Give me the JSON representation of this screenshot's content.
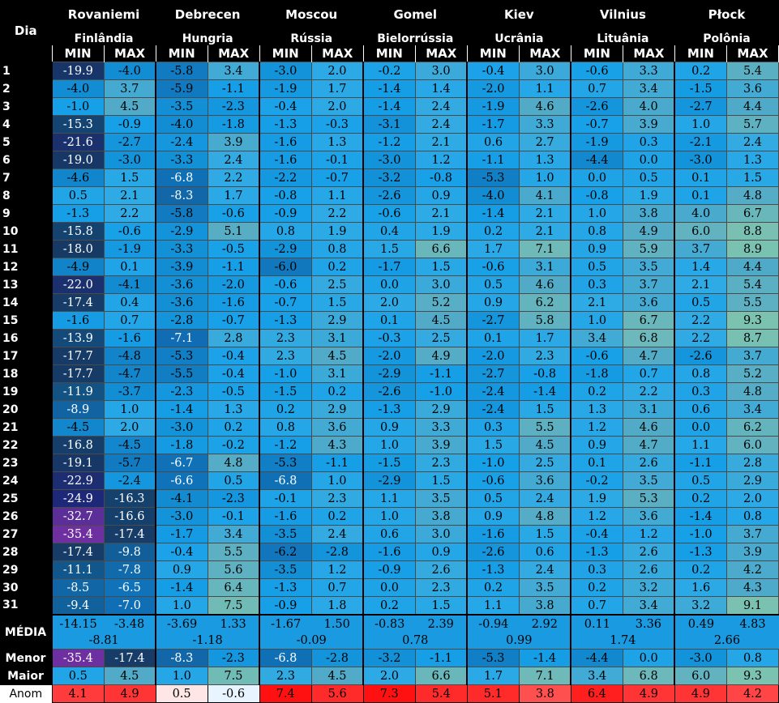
{
  "header": {
    "dia_label": "Dia",
    "min_label": "MIN",
    "max_label": "MAX"
  },
  "cities": [
    {
      "city": "Rovaniemi",
      "country": "Finlândia"
    },
    {
      "city": "Debrecen",
      "country": "Hungria"
    },
    {
      "city": "Moscou",
      "country": "Rússia"
    },
    {
      "city": "Gomel",
      "country": "Bielorrússia"
    },
    {
      "city": "Kiev",
      "country": "Ucrânia"
    },
    {
      "city": "Vilnius",
      "country": "Lituânia"
    },
    {
      "city": "Płock",
      "country": "Polônia"
    }
  ],
  "days": [
    "1",
    "2",
    "3",
    "4",
    "5",
    "6",
    "7",
    "8",
    "9",
    "10",
    "11",
    "12",
    "13",
    "14",
    "15",
    "16",
    "17",
    "18",
    "19",
    "20",
    "21",
    "22",
    "23",
    "24",
    "25",
    "26",
    "27",
    "28",
    "29",
    "30",
    "31"
  ],
  "values": [
    [
      [
        "-19.9",
        "-4.0"
      ],
      [
        "-5.8",
        "3.4"
      ],
      [
        "-3.0",
        "2.0"
      ],
      [
        "-0.2",
        "3.0"
      ],
      [
        "-0.4",
        "3.0"
      ],
      [
        "-0.6",
        "3.3"
      ],
      [
        "0.2",
        "5.4"
      ]
    ],
    [
      [
        "-4.0",
        "3.7"
      ],
      [
        "-5.9",
        "-1.1"
      ],
      [
        "-1.9",
        "1.7"
      ],
      [
        "-1.4",
        "1.4"
      ],
      [
        "-2.0",
        "1.1"
      ],
      [
        "0.7",
        "3.4"
      ],
      [
        "-1.5",
        "3.6"
      ]
    ],
    [
      [
        "-1.0",
        "4.5"
      ],
      [
        "-3.5",
        "-2.3"
      ],
      [
        "-0.4",
        "2.0"
      ],
      [
        "-1.4",
        "2.4"
      ],
      [
        "-1.9",
        "4.6"
      ],
      [
        "-2.6",
        "4.0"
      ],
      [
        "-2.7",
        "4.4"
      ]
    ],
    [
      [
        "-15.3",
        "-0.9"
      ],
      [
        "-4.0",
        "-1.8"
      ],
      [
        "-1.3",
        "-0.3"
      ],
      [
        "-3.1",
        "2.4"
      ],
      [
        "-1.7",
        "3.3"
      ],
      [
        "-0.7",
        "3.9"
      ],
      [
        "1.0",
        "5.7"
      ]
    ],
    [
      [
        "-21.6",
        "-2.7"
      ],
      [
        "-2.4",
        "3.9"
      ],
      [
        "-1.6",
        "1.3"
      ],
      [
        "-1.2",
        "2.1"
      ],
      [
        "0.6",
        "2.7"
      ],
      [
        "-1.9",
        "0.3"
      ],
      [
        "-2.1",
        "2.4"
      ]
    ],
    [
      [
        "-19.0",
        "-3.0"
      ],
      [
        "-3.3",
        "2.4"
      ],
      [
        "-1.6",
        "-0.1"
      ],
      [
        "-3.0",
        "1.2"
      ],
      [
        "-1.1",
        "1.3"
      ],
      [
        "-4.4",
        "0.0"
      ],
      [
        "-3.0",
        "1.3"
      ]
    ],
    [
      [
        "-4.6",
        "1.5"
      ],
      [
        "-6.8",
        "2.2"
      ],
      [
        "-2.2",
        "-0.7"
      ],
      [
        "-3.2",
        "-0.8"
      ],
      [
        "-5.3",
        "1.0"
      ],
      [
        "0.0",
        "0.5"
      ],
      [
        "0.1",
        "1.5"
      ]
    ],
    [
      [
        "0.5",
        "2.1"
      ],
      [
        "-8.3",
        "1.7"
      ],
      [
        "-0.8",
        "1.1"
      ],
      [
        "-2.6",
        "0.9"
      ],
      [
        "-4.0",
        "4.1"
      ],
      [
        "-0.8",
        "1.9"
      ],
      [
        "0.1",
        "4.8"
      ]
    ],
    [
      [
        "-1.3",
        "2.2"
      ],
      [
        "-5.8",
        "-0.6"
      ],
      [
        "-0.9",
        "2.2"
      ],
      [
        "-0.6",
        "2.1"
      ],
      [
        "-1.4",
        "2.1"
      ],
      [
        "1.0",
        "3.8"
      ],
      [
        "4.0",
        "6.7"
      ]
    ],
    [
      [
        "-15.8",
        "-0.6"
      ],
      [
        "-2.9",
        "5.1"
      ],
      [
        "0.8",
        "1.9"
      ],
      [
        "0.4",
        "1.9"
      ],
      [
        "0.2",
        "2.1"
      ],
      [
        "0.8",
        "4.9"
      ],
      [
        "6.0",
        "8.8"
      ]
    ],
    [
      [
        "-18.0",
        "-1.9"
      ],
      [
        "-3.3",
        "-0.5"
      ],
      [
        "-2.9",
        "0.8"
      ],
      [
        "1.5",
        "6.6"
      ],
      [
        "1.7",
        "7.1"
      ],
      [
        "0.9",
        "5.9"
      ],
      [
        "3.7",
        "8.9"
      ]
    ],
    [
      [
        "-4.9",
        "0.1"
      ],
      [
        "-3.9",
        "-1.1"
      ],
      [
        "-6.0",
        "0.2"
      ],
      [
        "-1.7",
        "1.5"
      ],
      [
        "-0.6",
        "3.1"
      ],
      [
        "0.5",
        "3.5"
      ],
      [
        "1.4",
        "4.4"
      ]
    ],
    [
      [
        "-22.0",
        "-4.1"
      ],
      [
        "-3.6",
        "-2.0"
      ],
      [
        "-0.6",
        "2.5"
      ],
      [
        "0.0",
        "3.0"
      ],
      [
        "0.5",
        "4.6"
      ],
      [
        "0.3",
        "3.7"
      ],
      [
        "2.1",
        "5.4"
      ]
    ],
    [
      [
        "-17.4",
        "0.4"
      ],
      [
        "-3.6",
        "-1.6"
      ],
      [
        "-0.7",
        "1.5"
      ],
      [
        "2.0",
        "5.2"
      ],
      [
        "0.9",
        "6.2"
      ],
      [
        "2.1",
        "3.6"
      ],
      [
        "0.5",
        "5.5"
      ]
    ],
    [
      [
        "-1.6",
        "0.7"
      ],
      [
        "-2.8",
        "-0.7"
      ],
      [
        "-1.3",
        "2.9"
      ],
      [
        "0.1",
        "4.5"
      ],
      [
        "-2.7",
        "5.8"
      ],
      [
        "1.0",
        "6.7"
      ],
      [
        "2.2",
        "9.3"
      ]
    ],
    [
      [
        "-13.9",
        "-1.6"
      ],
      [
        "-7.1",
        "2.8"
      ],
      [
        "2.3",
        "3.1"
      ],
      [
        "-0.3",
        "2.5"
      ],
      [
        "0.1",
        "1.7"
      ],
      [
        "3.4",
        "6.8"
      ],
      [
        "2.2",
        "8.7"
      ]
    ],
    [
      [
        "-17.7",
        "-4.8"
      ],
      [
        "-5.3",
        "-0.4"
      ],
      [
        "2.3",
        "4.5"
      ],
      [
        "-2.0",
        "4.9"
      ],
      [
        "-2.0",
        "2.3"
      ],
      [
        "-0.6",
        "4.7"
      ],
      [
        "-2.6",
        "3.7"
      ]
    ],
    [
      [
        "-17.7",
        "-4.7"
      ],
      [
        "-5.5",
        "-0.4"
      ],
      [
        "-1.0",
        "3.1"
      ],
      [
        "-2.9",
        "-1.1"
      ],
      [
        "-2.7",
        "-0.8"
      ],
      [
        "-1.8",
        "0.7"
      ],
      [
        "0.8",
        "5.2"
      ]
    ],
    [
      [
        "-11.9",
        "-3.7"
      ],
      [
        "-2.3",
        "-0.5"
      ],
      [
        "-1.5",
        "0.2"
      ],
      [
        "-2.6",
        "-1.0"
      ],
      [
        "-2.4",
        "-1.4"
      ],
      [
        "0.2",
        "2.2"
      ],
      [
        "0.3",
        "4.8"
      ]
    ],
    [
      [
        "-8.9",
        "1.0"
      ],
      [
        "-1.4",
        "1.3"
      ],
      [
        "0.2",
        "2.9"
      ],
      [
        "-1.3",
        "2.9"
      ],
      [
        "-2.4",
        "1.5"
      ],
      [
        "1.3",
        "3.1"
      ],
      [
        "0.6",
        "3.4"
      ]
    ],
    [
      [
        "-4.5",
        "2.0"
      ],
      [
        "-3.0",
        "0.2"
      ],
      [
        "0.8",
        "3.6"
      ],
      [
        "0.9",
        "3.3"
      ],
      [
        "0.3",
        "5.5"
      ],
      [
        "1.2",
        "4.6"
      ],
      [
        "0.0",
        "6.2"
      ]
    ],
    [
      [
        "-16.8",
        "-4.5"
      ],
      [
        "-1.8",
        "-0.2"
      ],
      [
        "-1.2",
        "4.3"
      ],
      [
        "1.0",
        "3.9"
      ],
      [
        "1.5",
        "4.5"
      ],
      [
        "0.9",
        "4.7"
      ],
      [
        "1.1",
        "6.0"
      ]
    ],
    [
      [
        "-19.1",
        "-5.7"
      ],
      [
        "-6.7",
        "4.8"
      ],
      [
        "-5.3",
        "-1.1"
      ],
      [
        "-1.5",
        "2.3"
      ],
      [
        "-1.0",
        "2.5"
      ],
      [
        "0.1",
        "2.6"
      ],
      [
        "-1.1",
        "2.8"
      ]
    ],
    [
      [
        "-22.9",
        "-2.4"
      ],
      [
        "-6.6",
        "0.5"
      ],
      [
        "-6.8",
        "1.0"
      ],
      [
        "-2.9",
        "1.5"
      ],
      [
        "-0.6",
        "3.6"
      ],
      [
        "-0.2",
        "3.5"
      ],
      [
        "0.5",
        "2.9"
      ]
    ],
    [
      [
        "-24.9",
        "-16.3"
      ],
      [
        "-4.1",
        "-2.3"
      ],
      [
        "-0.1",
        "2.3"
      ],
      [
        "1.1",
        "3.5"
      ],
      [
        "0.5",
        "2.4"
      ],
      [
        "1.9",
        "5.3"
      ],
      [
        "0.2",
        "2.0"
      ]
    ],
    [
      [
        "-32.7",
        "-16.6"
      ],
      [
        "-3.0",
        "-0.1"
      ],
      [
        "-1.6",
        "0.2"
      ],
      [
        "1.0",
        "3.8"
      ],
      [
        "0.9",
        "4.8"
      ],
      [
        "1.2",
        "3.6"
      ],
      [
        "-1.4",
        "0.8"
      ]
    ],
    [
      [
        "-35.4",
        "-17.4"
      ],
      [
        "-1.7",
        "3.4"
      ],
      [
        "-3.5",
        "2.4"
      ],
      [
        "0.6",
        "3.0"
      ],
      [
        "-1.6",
        "1.5"
      ],
      [
        "-0.4",
        "1.2"
      ],
      [
        "-1.0",
        "3.7"
      ]
    ],
    [
      [
        "-17.4",
        "-9.8"
      ],
      [
        "-0.4",
        "5.5"
      ],
      [
        "-6.2",
        "-2.8"
      ],
      [
        "-1.6",
        "0.9"
      ],
      [
        "-2.6",
        "0.6"
      ],
      [
        "-1.3",
        "2.6"
      ],
      [
        "-1.3",
        "3.9"
      ]
    ],
    [
      [
        "-11.1",
        "-7.8"
      ],
      [
        "0.9",
        "5.6"
      ],
      [
        "-3.5",
        "1.2"
      ],
      [
        "-0.9",
        "2.6"
      ],
      [
        "-1.3",
        "2.4"
      ],
      [
        "0.3",
        "2.6"
      ],
      [
        "0.2",
        "4.2"
      ]
    ],
    [
      [
        "-8.5",
        "-6.5"
      ],
      [
        "-1.4",
        "6.4"
      ],
      [
        "-1.3",
        "0.7"
      ],
      [
        "0.0",
        "2.3"
      ],
      [
        "0.2",
        "3.5"
      ],
      [
        "0.2",
        "3.2"
      ],
      [
        "1.6",
        "4.3"
      ]
    ],
    [
      [
        "-9.4",
        "-7.0"
      ],
      [
        "1.0",
        "7.5"
      ],
      [
        "-0.9",
        "1.8"
      ],
      [
        "0.2",
        "1.5"
      ],
      [
        "1.1",
        "3.8"
      ],
      [
        "0.7",
        "3.4"
      ],
      [
        "3.2",
        "9.1"
      ]
    ]
  ],
  "media": {
    "label": "MÉDIA",
    "minmax": [
      [
        "-14.15",
        "-3.48"
      ],
      [
        "-3.69",
        "1.33"
      ],
      [
        "-1.67",
        "1.50"
      ],
      [
        "-0.83",
        "2.39"
      ],
      [
        "-0.94",
        "2.92"
      ],
      [
        "0.11",
        "3.36"
      ],
      [
        "0.49",
        "4.83"
      ]
    ],
    "overall": [
      "-8.81",
      "-1.18",
      "-0.09",
      "0.78",
      "0.99",
      "1.74",
      "2.66"
    ]
  },
  "menor": {
    "label": "Menor",
    "values": [
      [
        "-35.4",
        "-17.4"
      ],
      [
        "-8.3",
        "-2.3"
      ],
      [
        "-6.8",
        "-2.8"
      ],
      [
        "-3.2",
        "-1.1"
      ],
      [
        "-5.3",
        "-1.4"
      ],
      [
        "-4.4",
        "0.0"
      ],
      [
        "-3.0",
        "0.8"
      ]
    ]
  },
  "maior": {
    "label": "Maior",
    "values": [
      [
        "0.5",
        "4.5"
      ],
      [
        "1.0",
        "7.5"
      ],
      [
        "2.3",
        "4.5"
      ],
      [
        "2.0",
        "6.6"
      ],
      [
        "1.7",
        "7.1"
      ],
      [
        "3.4",
        "6.8"
      ],
      [
        "6.0",
        "9.3"
      ]
    ]
  },
  "anom": {
    "label": "Anom",
    "values": [
      [
        "4.1",
        "4.9"
      ],
      [
        "0.5",
        "-0.6"
      ],
      [
        "7.4",
        "5.6"
      ],
      [
        "7.3",
        "5.4"
      ],
      [
        "5.1",
        "3.8"
      ],
      [
        "6.4",
        "4.9"
      ],
      [
        "4.9",
        "4.2"
      ]
    ]
  },
  "colors": {
    "anom": [
      [
        "#ff3b3b",
        "#ff3535"
      ],
      [
        "#ffe6e6",
        "#e8f4ff"
      ],
      [
        "#ff1111",
        "#ff2a2a"
      ],
      [
        "#ff1111",
        "#ff2a2a"
      ],
      [
        "#ff2a2a",
        "#ff5050"
      ],
      [
        "#ff1f1f",
        "#ff3535"
      ],
      [
        "#ff3535",
        "#ff4545"
      ]
    ],
    "grid": "#4a4a4a"
  }
}
